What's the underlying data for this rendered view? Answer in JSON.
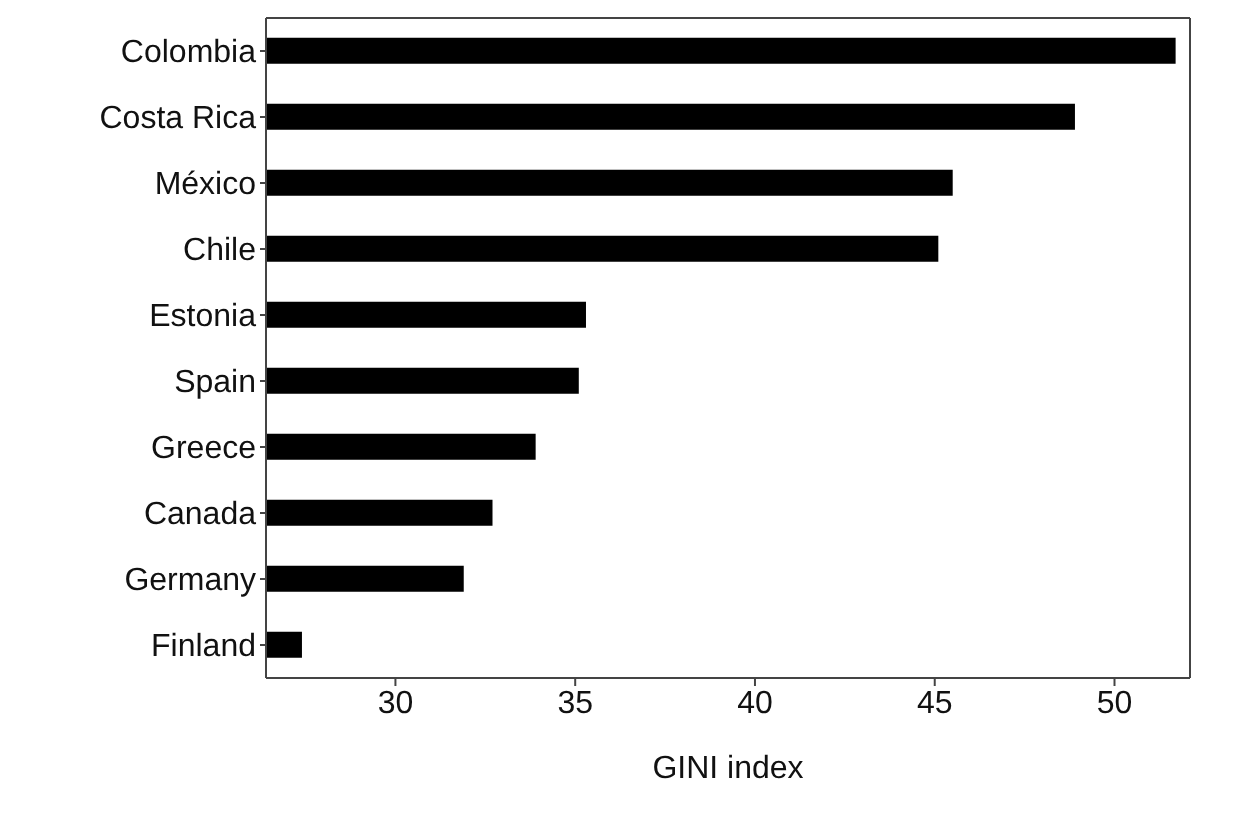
{
  "chart_data": {
    "type": "bar",
    "orientation": "horizontal",
    "xlabel": "GINI index",
    "categories": [
      "Colombia",
      "Costa Rica",
      "México",
      "Chile",
      "Estonia",
      "Spain",
      "Greece",
      "Canada",
      "Germany",
      "Finland"
    ],
    "values": [
      51.7,
      48.9,
      45.5,
      45.1,
      35.3,
      35.1,
      33.9,
      32.7,
      31.9,
      27.4
    ],
    "color": "#000000",
    "xlim": [
      26.4,
      52.1
    ],
    "xticks": [
      30,
      35,
      40,
      45,
      50
    ],
    "grid": false,
    "legend": false
  }
}
